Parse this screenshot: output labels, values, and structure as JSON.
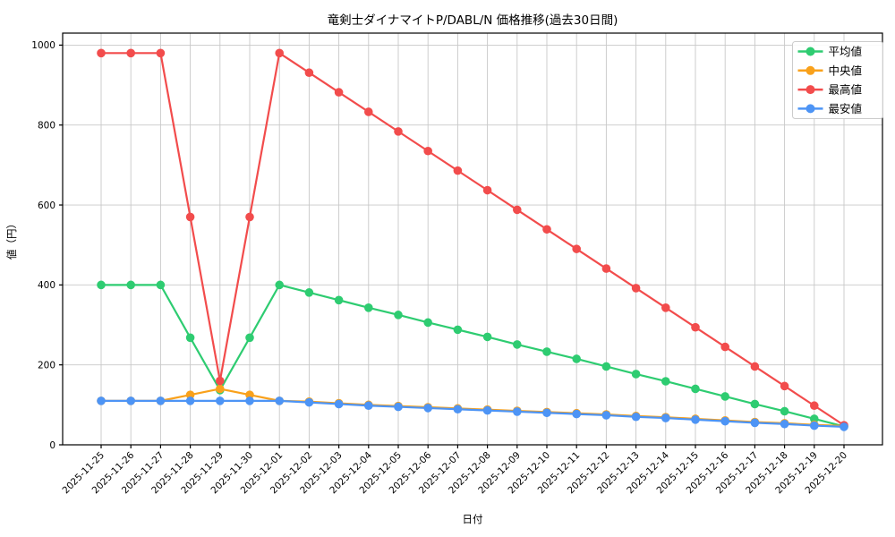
{
  "chart_data": {
    "type": "line",
    "title": "竜剣士ダイナマイトP/DABL/N 価格推移(過去30日間)",
    "xlabel": "日付",
    "ylabel": "値（円）",
    "ylim": [
      0,
      1030
    ],
    "yticks": [
      0,
      200,
      400,
      600,
      800,
      1000
    ],
    "grid": true,
    "grid_color": "#c8c8c8",
    "frame_color": "#000000",
    "legend_position": "upper right",
    "x": [
      "2025-11-25",
      "2025-11-26",
      "2025-11-27",
      "2025-11-28",
      "2025-11-29",
      "2025-11-30",
      "2025-12-01",
      "2025-12-02",
      "2025-12-03",
      "2025-12-04",
      "2025-12-05",
      "2025-12-06",
      "2025-12-07",
      "2025-12-08",
      "2025-12-09",
      "2025-12-10",
      "2025-12-11",
      "2025-12-12",
      "2025-12-13",
      "2025-12-14",
      "2025-12-15",
      "2025-12-16",
      "2025-12-17",
      "2025-12-18",
      "2025-12-19",
      "2025-12-20"
    ],
    "series": [
      {
        "name": "平均値",
        "key": "average",
        "color": "#2ecc71",
        "values": [
          400,
          400,
          400,
          268,
          137,
          268,
          400,
          381,
          362,
          343,
          325,
          306,
          288,
          270,
          251,
          233,
          215,
          196,
          177,
          159,
          140,
          121,
          102,
          84,
          65,
          46
        ]
      },
      {
        "name": "中央値",
        "key": "median",
        "color": "#f9a11b",
        "values": [
          110,
          110,
          110,
          125,
          140,
          125,
          110,
          108,
          104,
          100,
          97,
          94,
          91,
          88,
          85,
          82,
          79,
          76,
          72,
          69,
          65,
          61,
          57,
          54,
          50,
          47
        ]
      },
      {
        "name": "最高値",
        "key": "max",
        "color": "#f24c4c",
        "values": [
          980,
          980,
          980,
          570,
          160,
          570,
          980,
          931,
          882,
          833,
          784,
          735,
          686,
          637,
          588,
          539,
          490,
          441,
          392,
          343,
          294,
          245,
          196,
          147,
          98,
          49
        ]
      },
      {
        "name": "最安値",
        "key": "min",
        "color": "#4d94f5",
        "values": [
          110,
          110,
          110,
          110,
          110,
          110,
          110,
          106,
          102,
          98,
          95,
          92,
          89,
          86,
          83,
          80,
          77,
          74,
          70,
          67,
          63,
          59,
          55,
          52,
          48,
          45
        ]
      }
    ]
  }
}
